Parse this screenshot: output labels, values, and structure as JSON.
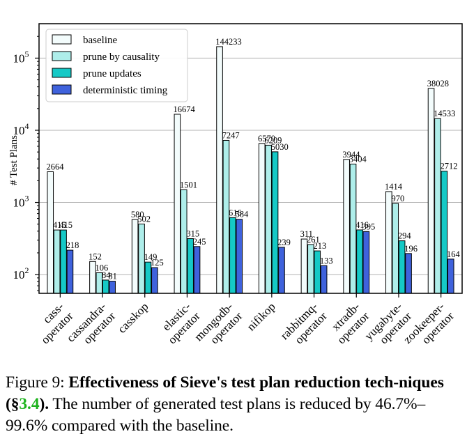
{
  "chart_data": {
    "type": "bar",
    "yscale": "log",
    "ylabel": "# Test Plans",
    "ylim": [
      55,
      300000
    ],
    "yticks": [
      {
        "value": 100,
        "base": "10",
        "exp": "2"
      },
      {
        "value": 1000,
        "base": "10",
        "exp": "3"
      },
      {
        "value": 10000,
        "base": "10",
        "exp": "4"
      },
      {
        "value": 100000,
        "base": "10",
        "exp": "5"
      }
    ],
    "grid": true,
    "legend_position": "top-left",
    "categories": [
      "cass-\noperator",
      "cassandra-\noperator",
      "casskop",
      "elastic-\noperator",
      "mongodb-\noperator",
      "nifikop",
      "rabbitmq-\noperator",
      "xtradb-\noperator",
      "yugabyte-\noperator",
      "zookeeper-\noperator"
    ],
    "series": [
      {
        "name": "baseline",
        "color": "#f3fcfc",
        "values": [
          2664,
          152,
          580,
          16674,
          144233,
          6570,
          311,
          3944,
          1414,
          38028
        ],
        "labels": [
          "2664",
          "152",
          "580",
          "16674",
          "144233",
          "6570",
          "311",
          "3944",
          "1414",
          "38028"
        ]
      },
      {
        "name": "prune by causality",
        "color": "#aeeeea",
        "values": [
          415,
          106,
          502,
          1501,
          7247,
          6209,
          261,
          3404,
          970,
          14533
        ],
        "labels": [
          "415",
          "106",
          "502",
          "1501",
          "7247",
          "6209",
          "261",
          "3404",
          "970",
          "14533"
        ]
      },
      {
        "name": "prune updates",
        "color": "#15c9c6",
        "values": [
          415,
          84,
          149,
          315,
          616,
          5030,
          213,
          416,
          294,
          2712
        ],
        "labels": [
          "415",
          "84",
          "149",
          "315",
          "616",
          "5030",
          "213",
          "416",
          "294",
          "2712"
        ]
      },
      {
        "name": "deterministic timing",
        "color": "#3f62dc",
        "values": [
          218,
          81,
          125,
          245,
          584,
          239,
          133,
          395,
          196,
          164
        ],
        "labels": [
          "218",
          "81",
          "125",
          "245",
          "584",
          "239",
          "133",
          "395",
          "196",
          "164"
        ]
      }
    ]
  },
  "caption": {
    "figure_label": "Figure 9: ",
    "bold_title_part1": "Effectiveness of Sieve's test plan reduction tech-niques (§",
    "section_ref": "3.4",
    "bold_title_part2": ").",
    "body": " The number of generated test plans is reduced by 46.7%–99.6% compared with the baseline."
  }
}
